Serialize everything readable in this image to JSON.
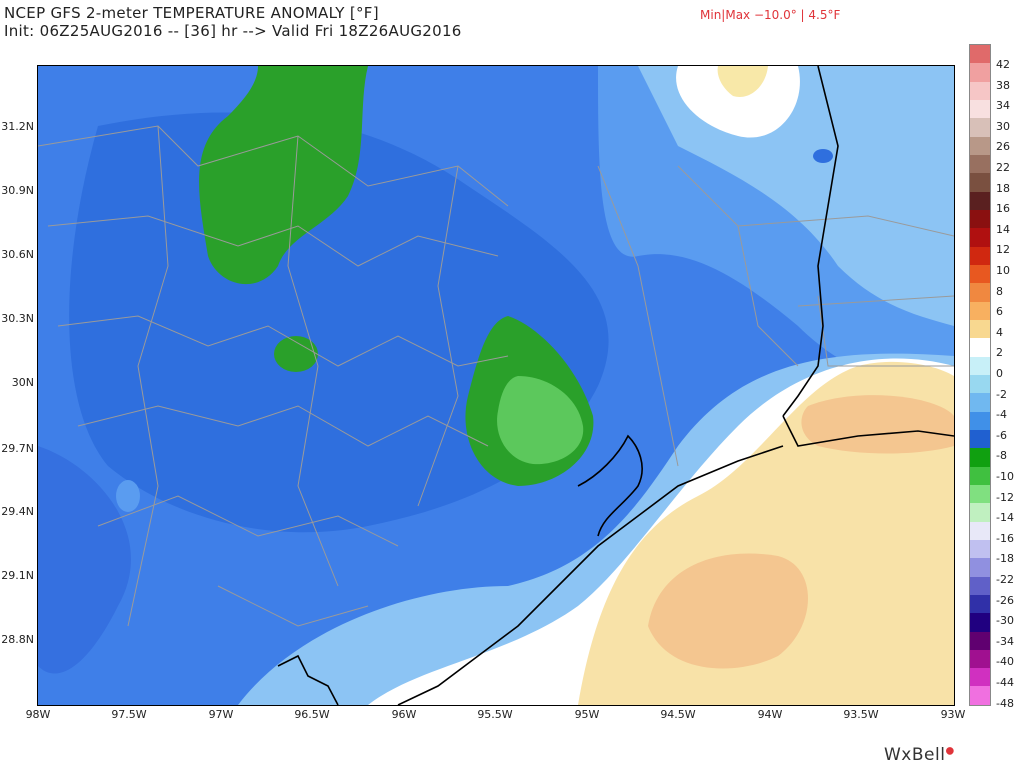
{
  "header": {
    "title_line1": "NCEP GFS 2-meter TEMPERATURE ANOMALY [°F]",
    "title_line2": "Init: 06Z25AUG2016 -- [36] hr --> Valid Fri 18Z26AUG2016",
    "minmax": "Min|Max −10.0° | 4.5°F"
  },
  "latitude_labels": [
    "31.2N",
    "30.9N",
    "30.6N",
    "30.3N",
    "30N",
    "29.7N",
    "29.4N",
    "29.1N",
    "28.8N"
  ],
  "longitude_labels": [
    "98W",
    "97.5W",
    "97W",
    "96.5W",
    "96W",
    "95.5W",
    "95W",
    "94.5W",
    "94W",
    "93.5W",
    "93W"
  ],
  "colorbar": {
    "labels": [
      "42",
      "38",
      "34",
      "30",
      "26",
      "22",
      "18",
      "16",
      "14",
      "12",
      "10",
      "8",
      "6",
      "4",
      "2",
      "0",
      "-2",
      "-4",
      "-6",
      "-8",
      "-10",
      "-12",
      "-14",
      "-16",
      "-18",
      "-22",
      "-26",
      "-30",
      "-34",
      "-40",
      "-44",
      "-48"
    ],
    "colors": [
      "#e06a6a",
      "#f0a0a0",
      "#f6c6c6",
      "#f8e0e0",
      "#d8c0b8",
      "#b89888",
      "#987060",
      "#7a5040",
      "#5a2020",
      "#8a1010",
      "#b01010",
      "#d02810",
      "#e85820",
      "#f08840",
      "#f8b060",
      "#f8d890",
      "#ffffff",
      "#c8f0f8",
      "#98d8f0",
      "#70b8f0",
      "#4090e8",
      "#2060d0",
      "#10a010",
      "#40c040",
      "#80e080",
      "#c0f0c0",
      "#e8e8f8",
      "#c0c0f0",
      "#9090e0",
      "#6060c8",
      "#3030a8",
      "#200080",
      "#600070",
      "#a01090",
      "#d030c0",
      "#f070e0"
    ]
  },
  "branding": {
    "name": "WxBell"
  }
}
